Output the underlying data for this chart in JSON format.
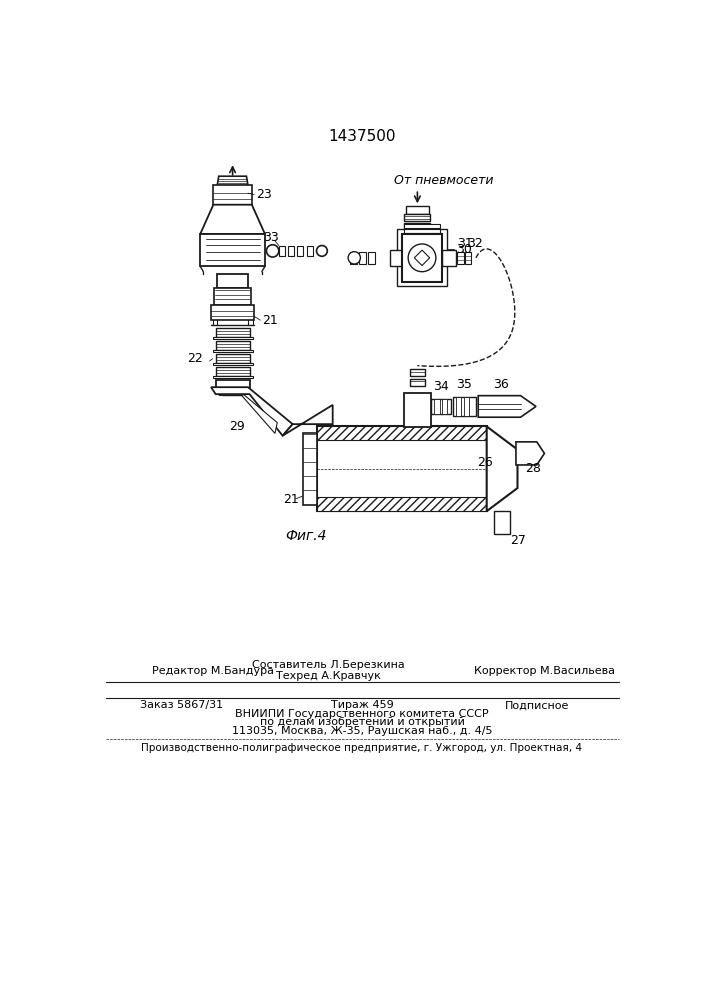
{
  "patent_number": "1437500",
  "background_color": "#ffffff",
  "line_color": "#1a1a1a",
  "fig_label": "Фиг.4",
  "annotation_from_pneumo": "От пневмосети",
  "footer": {
    "line1_left": "Редактор М.Бандура",
    "line1_center_top": "Составитель Л.Березкина",
    "line1_center": "Техред А.Кравчук",
    "line1_right": "Корректор М.Васильева",
    "line2_left": "Заказ 5867/31",
    "line2_center": "Тираж 459",
    "line2_right": "Подписное",
    "line3": "ВНИИПИ Государственного комитета СССР",
    "line4": "по делам изобретений и открытий",
    "line5": "113035, Москва, Ж-35, Раушская наб., д. 4/5",
    "line6": "Производственно-полиграфическое предприятие, г. Ужгород, ул. Проектная, 4"
  }
}
